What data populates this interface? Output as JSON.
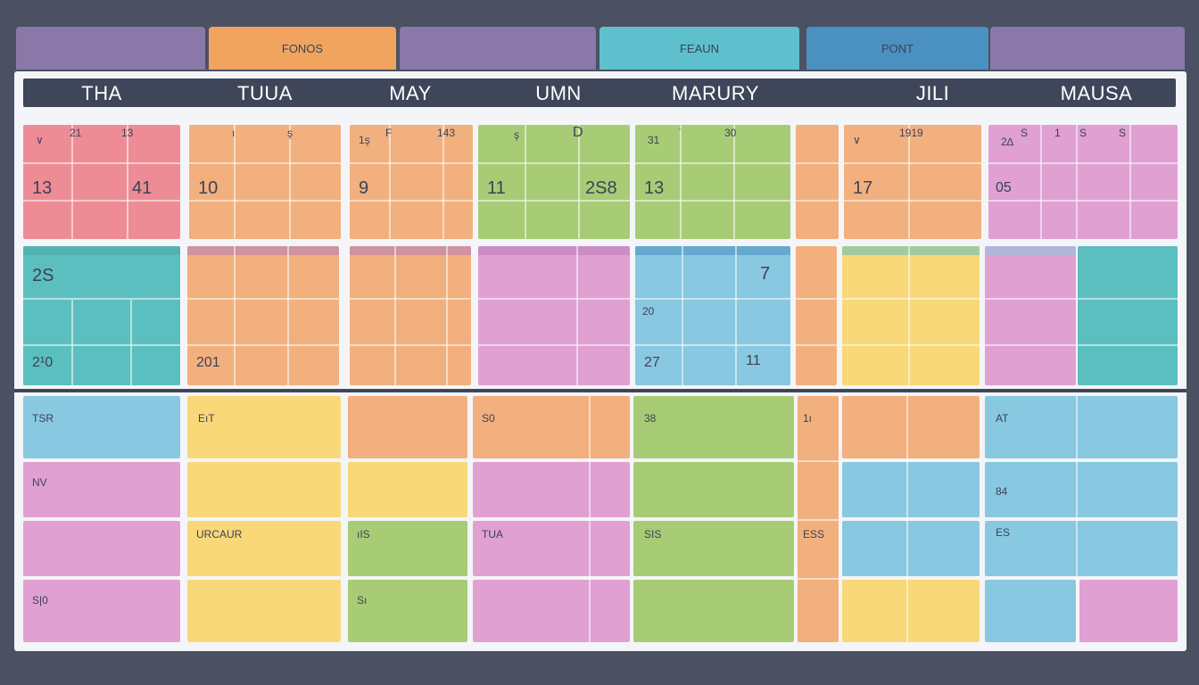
{
  "tabs": [
    {
      "label": "",
      "color": "#8a78a8"
    },
    {
      "label": "FONOS",
      "color": "#f0a45e"
    },
    {
      "label": "",
      "color": "#8a78a8"
    },
    {
      "label": "FEAUN",
      "color": "#5ec0cc"
    },
    {
      "label": "PONT",
      "color": "#4a90c0"
    },
    {
      "label": "",
      "color": "#8a78a8"
    }
  ],
  "months": [
    "THA",
    "TUUA",
    "MAY",
    "UMN",
    "MARURY",
    "JILI ",
    "MAUSA"
  ],
  "top_row": [
    {
      "color": "#ee8c96",
      "small": [
        "∨",
        "21",
        "13"
      ],
      "big": [
        "13",
        "41"
      ]
    },
    {
      "color": "#f2b07e",
      "small": [
        "ı",
        "ş"
      ],
      "big": [
        "10"
      ]
    },
    {
      "color": "#f2b07e",
      "small": [
        "1ş",
        "F",
        "143"
      ],
      "big": [
        "9"
      ]
    },
    {
      "color": "#a8cc76",
      "small": [
        "ş",
        "D"
      ],
      "big": [
        "11",
        "2S8"
      ]
    },
    {
      "color": "#a8cc76",
      "small": [
        "31",
        "ˈ",
        "30"
      ],
      "big": [
        "13"
      ]
    },
    {
      "color": "#f2b07e",
      "small": [],
      "big": []
    },
    {
      "color": "#f2b07e",
      "small": [
        "∨",
        "1919"
      ],
      "big": [
        "17"
      ]
    },
    {
      "color": "#e0a0d2",
      "small": [
        "2∆",
        "S",
        "1",
        "S",
        "S"
      ],
      "big": [
        "05"
      ]
    }
  ],
  "mid_row": [
    {
      "color": "#5cbfbf",
      "labels": [
        "2S",
        "2¹0"
      ]
    },
    {
      "color": "#f2b07e",
      "labels": [
        "201"
      ]
    },
    {
      "color": "#f2b07e",
      "labels": []
    },
    {
      "color": "#e0a0d2",
      "labels": []
    },
    {
      "color": "#88c8e0",
      "labels": [
        "7",
        "20",
        "27",
        "11"
      ]
    },
    {
      "color": "#f2b07e",
      "labels": []
    },
    {
      "color": "#f8d878",
      "labels": []
    },
    {
      "color": "#e0a0d2",
      "labels": []
    },
    {
      "color": "#5cbfbf",
      "labels": []
    }
  ],
  "bottom_row": [
    {
      "colors": [
        "#88c8e0",
        "#e0a0d2",
        "#e0a0d2",
        "#e0a0d2"
      ],
      "labels": [
        "TSR",
        "NV",
        "",
        "S|0"
      ]
    },
    {
      "colors": [
        "#f8d878",
        "#f8d878",
        "#f8d878",
        "#f8d878"
      ],
      "labels": [
        "EıT",
        "",
        "URCAUR",
        ""
      ]
    },
    {
      "colors": [
        "#f2b07e",
        "#f8d878",
        "#a8cc76",
        "#a8cc76"
      ],
      "labels": [
        "",
        "",
        "ıIS",
        "Sı"
      ]
    },
    {
      "colors": [
        "#f2b07e",
        "#e0a0d2",
        "#e0a0d2",
        "#e0a0d2"
      ],
      "labels": [
        "S0",
        "",
        "TUA",
        ""
      ]
    },
    {
      "colors": [
        "#a8cc76",
        "#a8cc76",
        "#a8cc76",
        "#a8cc76"
      ],
      "labels": [
        "38",
        "",
        "SIS",
        ""
      ]
    },
    {
      "colors": [
        "#f2b07e",
        "#f2b07e",
        "#f2b07e",
        "#f2b07e"
      ],
      "labels": [
        "1ı",
        "",
        "ESS",
        ""
      ]
    },
    {
      "colors": [
        "#f2b07e",
        "#88c8e0",
        "#88c8e0",
        "#f8d878"
      ],
      "labels": []
    },
    {
      "colors": [
        "#88c8e0",
        "#88c8e0",
        "#88c8e0",
        "#e0a0d2"
      ],
      "labels": [
        "AT",
        "84",
        "ES",
        ""
      ]
    }
  ]
}
